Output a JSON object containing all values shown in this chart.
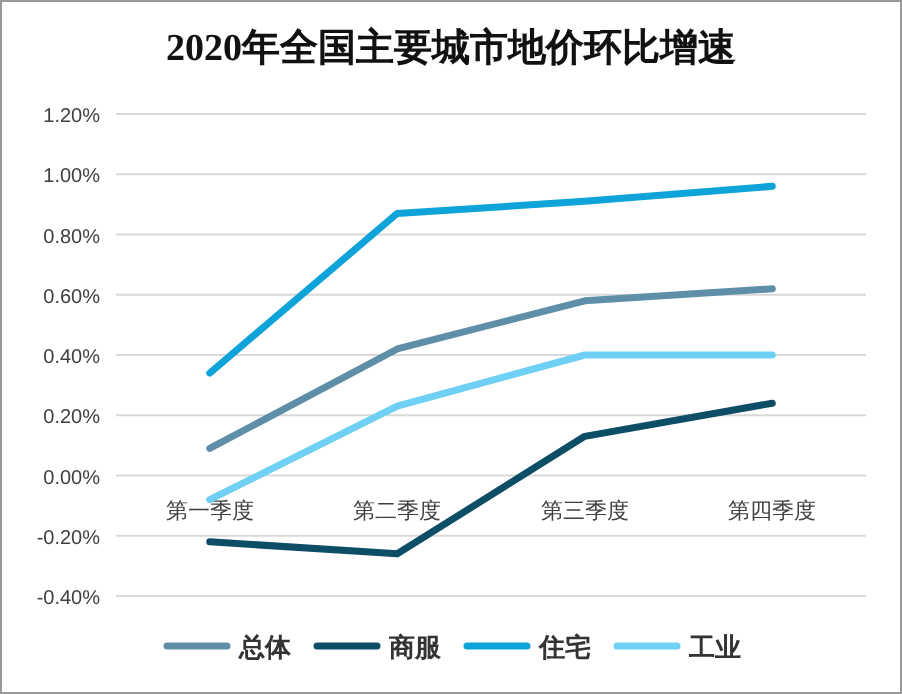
{
  "chart_data": {
    "type": "line",
    "title": "2020年全国主要城市地价环比增速",
    "categories": [
      "第一季度",
      "第二季度",
      "第三季度",
      "第四季度"
    ],
    "series": [
      {
        "name": "总体",
        "color": "#5f8fa8",
        "values": [
          0.09,
          0.42,
          0.58,
          0.62
        ]
      },
      {
        "name": "商服",
        "color": "#0d4d66",
        "values": [
          -0.22,
          -0.26,
          0.13,
          0.24
        ]
      },
      {
        "name": "住宅",
        "color": "#0ea3d9",
        "values": [
          0.34,
          0.87,
          0.91,
          0.96
        ]
      },
      {
        "name": "工业",
        "color": "#6fcff5",
        "values": [
          -0.08,
          0.23,
          0.4,
          0.4
        ]
      }
    ],
    "ylim": [
      -0.4,
      1.2
    ],
    "yticks": [
      {
        "value": -0.4,
        "label": "-0.40%"
      },
      {
        "value": -0.2,
        "label": "-0.20%"
      },
      {
        "value": 0,
        "label": "0.00%"
      },
      {
        "value": 0.2,
        "label": "0.20%"
      },
      {
        "value": 0.4,
        "label": "0.40%"
      },
      {
        "value": 0.6,
        "label": "0.60%"
      },
      {
        "value": 0.8,
        "label": "0.80%"
      },
      {
        "value": 1.0,
        "label": "1.00%"
      },
      {
        "value": 1.2,
        "label": "1.20%"
      }
    ],
    "grid": "y",
    "legend": "bottom",
    "marker": "none",
    "line_style": "solid"
  }
}
